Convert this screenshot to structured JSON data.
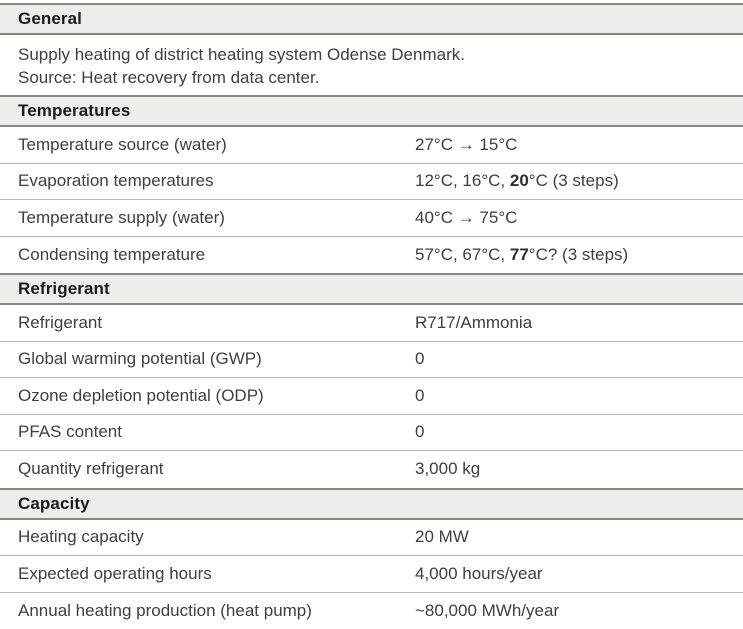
{
  "table": {
    "sections": [
      {
        "title": "General",
        "body_lines": [
          "Supply heating of district heating system Odense Denmark.",
          "Source: Heat recovery from data center."
        ]
      },
      {
        "title": "Temperatures",
        "rows": [
          {
            "label": "Temperature source (water)",
            "value": "27°C → 15°C"
          },
          {
            "label": "Evaporation temperatures",
            "value_pre": "12°C, 16°C, ",
            "value_bold": "20",
            "value_post": "°C (3 steps)"
          },
          {
            "label": "Temperature supply (water)",
            "value": "40°C → 75°C"
          },
          {
            "label": "Condensing temperature",
            "value_pre": "57°C, 67°C, ",
            "value_bold": "77",
            "value_post": "°C? (3 steps)"
          }
        ]
      },
      {
        "title": "Refrigerant",
        "rows": [
          {
            "label": "Refrigerant",
            "value": "R717/Ammonia"
          },
          {
            "label": "Global warming potential (GWP)",
            "value": "0"
          },
          {
            "label": "Ozone depletion potential (ODP)",
            "value": "0"
          },
          {
            "label": "PFAS content",
            "value": "0"
          },
          {
            "label": "Quantity refrigerant",
            "value": "3,000 kg"
          }
        ]
      },
      {
        "title": "Capacity",
        "rows": [
          {
            "label": "Heating capacity",
            "value": "20 MW"
          },
          {
            "label": "Expected operating hours",
            "value": "4,000 hours/year"
          },
          {
            "label": "Annual heating production (heat pump)",
            "value": "~80,000 MWh/year"
          }
        ]
      }
    ],
    "colors": {
      "header_background": "#eeede9",
      "header_border": "#8a857c",
      "row_separator": "#b7b5b0",
      "header_text": "#1c1c1c",
      "body_text": "#3f3f3f"
    }
  }
}
